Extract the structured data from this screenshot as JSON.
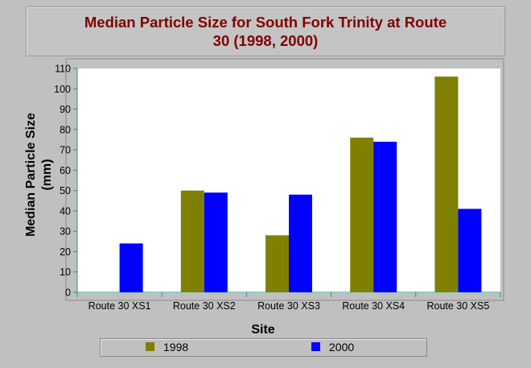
{
  "chart_data": {
    "type": "bar",
    "title_lines": [
      "Median Particle Size for South Fork Trinity at Route",
      "30  (1998, 2000)"
    ],
    "xlabel": "Site",
    "ylabel_lines": [
      "Median Particle Size",
      "(mm)"
    ],
    "categories": [
      "Route 30 XS1",
      "Route 30 XS2",
      "Route 30 XS3",
      "Route 30 XS4",
      "Route 30 XS5"
    ],
    "series": [
      {
        "name": "1998",
        "color": "#808000",
        "values": [
          null,
          50,
          28,
          76,
          106
        ]
      },
      {
        "name": "2000",
        "color": "#0000ff",
        "values": [
          24,
          49,
          48,
          74,
          41
        ]
      }
    ],
    "ylim": [
      0,
      110
    ],
    "yticks": [
      0,
      10,
      20,
      30,
      40,
      50,
      60,
      70,
      80,
      90,
      100,
      110
    ],
    "grid": false,
    "legend_position": "bottom"
  }
}
